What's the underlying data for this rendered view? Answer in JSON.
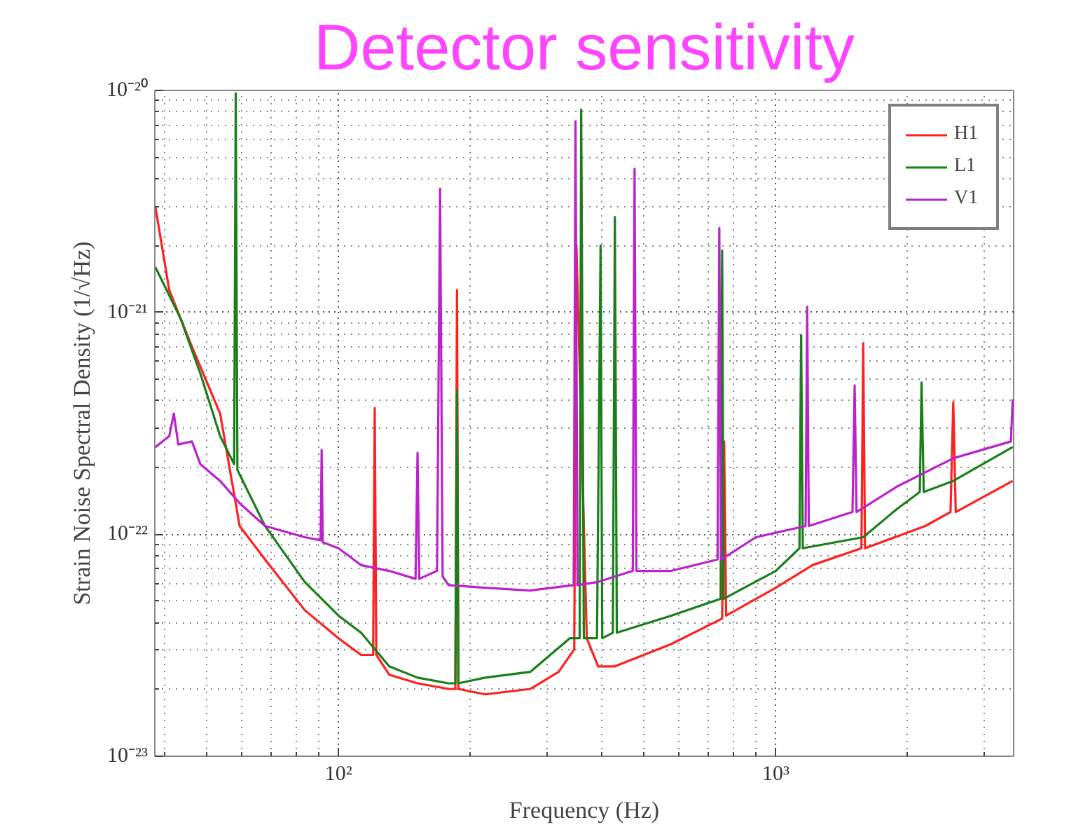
{
  "chart_data": {
    "type": "line",
    "title": "Detector sensitivity",
    "xlabel": "Frequency (Hz)",
    "ylabel": "Strain Noise Spectral Density (1/√Hz)",
    "log": "xy",
    "grid": true,
    "legend": "top right",
    "line_style": "solid",
    "marker": "none",
    "xlim": [
      38,
      3500
    ],
    "ylim": [
      1e-23,
      1e-20
    ],
    "xticks": [
      {
        "value": 100,
        "label": "10²"
      },
      {
        "value": 1000,
        "label": "10³"
      }
    ],
    "yticks": [
      {
        "value": 1e-23,
        "label": "10⁻²³"
      },
      {
        "value": 1e-22,
        "label": "10⁻²²"
      },
      {
        "value": 1e-21,
        "label": "10⁻²¹"
      },
      {
        "value": 1e-20,
        "label": "10⁻²⁰"
      }
    ],
    "series": [
      {
        "name": "H1",
        "color": "#ff2020",
        "x": [
          38.1,
          41.0,
          46.2,
          53.6,
          59.4,
          67.9,
          83.7,
          100,
          112.6,
          120,
          121,
          122,
          130.6,
          151.6,
          178.5,
          185,
          186.6,
          188,
          216.5,
          274.6,
          318.7,
          346,
          350,
          369.7,
          392.4,
          428.6,
          576.6,
          754,
          762,
          770,
          1000,
          1213,
          1570,
          1585,
          1600,
          2198,
          2510,
          2547,
          2580,
          3483
        ],
        "values": [
          3e-21,
          1.26e-21,
          7e-22,
          3.5e-22,
          1.09e-22,
          7.7e-23,
          4.55e-23,
          3.4e-23,
          2.86e-23,
          2.86e-23,
          3.7e-22,
          2.86e-23,
          2.33e-23,
          2.13e-23,
          2.01e-23,
          2.01e-23,
          1.26e-21,
          2.01e-23,
          1.9e-23,
          2.01e-23,
          2.4e-23,
          3.03e-23,
          2.01e-21,
          3.4e-23,
          2.54e-23,
          2.54e-23,
          3.2e-23,
          4.17e-23,
          2.62e-22,
          4.3e-23,
          5.74e-23,
          7.26e-23,
          8.65e-23,
          7.26e-22,
          8.65e-23,
          1.09e-22,
          1.26e-22,
          3.94e-22,
          1.26e-22,
          1.74e-22
        ]
      },
      {
        "name": "L1",
        "color": "#1a7f1a",
        "x": [
          38.1,
          43.5,
          48.3,
          53.6,
          57.7,
          58.2,
          58.7,
          67.9,
          83.7,
          100,
          112.6,
          130.6,
          151.6,
          178.5,
          185,
          186.6,
          188,
          216.5,
          274.6,
          338,
          356,
          358.9,
          364,
          390,
          397.5,
          401,
          424,
          428.6,
          433,
          576.6,
          748,
          754,
          760,
          1000,
          1133,
          1143,
          1153,
          1585,
          1893,
          2135,
          2155,
          2180,
          2547,
          3483
        ],
        "values": [
          1.6e-21,
          9.4e-22,
          5.3e-22,
          2.77e-22,
          2.07e-22,
          9.7e-21,
          1.95e-22,
          1.09e-22,
          6.1e-23,
          4.3e-23,
          3.6e-23,
          2.54e-23,
          2.26e-23,
          2.13e-23,
          2.13e-23,
          4.43e-22,
          2.13e-23,
          2.26e-23,
          2.4e-23,
          3.4e-23,
          3.4e-23,
          8.2e-21,
          3.4e-23,
          3.4e-23,
          2e-21,
          3.4e-23,
          3.6e-23,
          2.69e-21,
          3.6e-23,
          4.3e-23,
          5.12e-23,
          1.9e-21,
          5.12e-23,
          6.84e-23,
          8.65e-23,
          7.9e-22,
          8.65e-23,
          9.7e-23,
          1.3e-22,
          1.55e-22,
          4.83e-22,
          1.55e-22,
          1.74e-22,
          2.47e-22
        ]
      },
      {
        "name": "V1",
        "color": "#bb22cc",
        "x": [
          38.1,
          41.0,
          42.0,
          43.0,
          46.2,
          48.3,
          53.6,
          59.4,
          67.9,
          83.7,
          91,
          91.5,
          92,
          100,
          112.6,
          130.6,
          150,
          151.6,
          153,
          168,
          170.7,
          173,
          178.5,
          216.5,
          274.6,
          345,
          348.3,
          352,
          392.4,
          471,
          475.4,
          480,
          576.6,
          736,
          742.8,
          750,
          901,
          1170,
          1180,
          1190,
          1498,
          1515,
          1530,
          1893,
          2547,
          3450,
          3483
        ],
        "values": [
          2.47e-22,
          2.77e-22,
          3.5e-22,
          2.54e-22,
          2.62e-22,
          2.07e-22,
          1.74e-22,
          1.38e-22,
          1.09e-22,
          9.7e-23,
          9.4e-23,
          2.4e-22,
          9.2e-23,
          8.65e-23,
          7.26e-23,
          6.84e-23,
          6.3e-23,
          2.33e-22,
          6.3e-23,
          6.84e-23,
          3.61e-21,
          6.46e-23,
          5.9e-23,
          5.74e-23,
          5.58e-23,
          5.9e-23,
          7.26e-21,
          5.9e-23,
          6.1e-23,
          6.84e-23,
          4.43e-21,
          6.84e-23,
          6.84e-23,
          7.7e-23,
          2.4e-21,
          7.7e-23,
          9.7e-23,
          1.09e-22,
          1.06e-21,
          1.09e-22,
          1.26e-22,
          4.69e-22,
          1.26e-22,
          1.64e-22,
          2.2e-22,
          2.62e-22,
          4.06e-22
        ]
      }
    ]
  }
}
